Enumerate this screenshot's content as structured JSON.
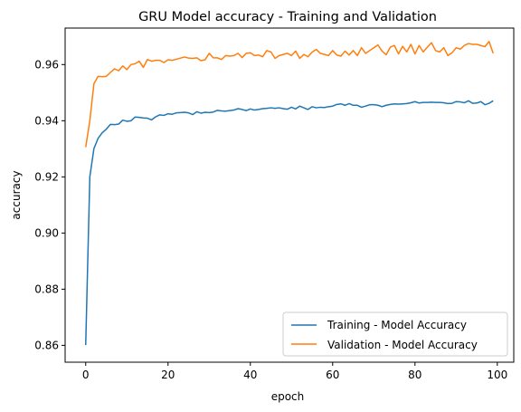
{
  "chart_data": {
    "type": "line",
    "title": "GRU Model accuracy - Training and Validation",
    "xlabel": "epoch",
    "ylabel": "accuracy",
    "xlim": [
      -5,
      104
    ],
    "ylim": [
      0.854,
      0.973
    ],
    "xticks": [
      0,
      20,
      40,
      60,
      80,
      100
    ],
    "yticks": [
      0.86,
      0.88,
      0.9,
      0.92,
      0.94,
      0.96
    ],
    "ytick_labels": [
      "0.86",
      "0.88",
      "0.90",
      "0.92",
      "0.94",
      "0.96"
    ],
    "grid": false,
    "legend_position": "lower-right",
    "series": [
      {
        "name": "Training - Model Accuracy",
        "color": "#1f77b4",
        "x": [
          0,
          1,
          2,
          3,
          4,
          5,
          6,
          7,
          8,
          9,
          10,
          11,
          12,
          13,
          14,
          15,
          16,
          17,
          18,
          19,
          20,
          21,
          22,
          23,
          24,
          25,
          26,
          27,
          28,
          29,
          30,
          31,
          32,
          33,
          34,
          35,
          36,
          37,
          38,
          39,
          40,
          41,
          42,
          43,
          44,
          45,
          46,
          47,
          48,
          49,
          50,
          51,
          52,
          53,
          54,
          55,
          56,
          57,
          58,
          59,
          60,
          61,
          62,
          63,
          64,
          65,
          66,
          67,
          68,
          69,
          70,
          71,
          72,
          73,
          74,
          75,
          76,
          77,
          78,
          79,
          80,
          81,
          82,
          83,
          84,
          85,
          86,
          87,
          88,
          89,
          90,
          91,
          92,
          93,
          94,
          95,
          96,
          97,
          98,
          99
        ],
        "values": [
          0.8601,
          0.92,
          0.9301,
          0.9337,
          0.9357,
          0.937,
          0.9387,
          0.9386,
          0.9388,
          0.9402,
          0.9398,
          0.94,
          0.9413,
          0.9412,
          0.941,
          0.9409,
          0.9403,
          0.9414,
          0.9421,
          0.9419,
          0.9425,
          0.9423,
          0.9428,
          0.9429,
          0.943,
          0.9428,
          0.9422,
          0.9432,
          0.9427,
          0.943,
          0.9429,
          0.9431,
          0.9437,
          0.9435,
          0.9434,
          0.9436,
          0.9438,
          0.9443,
          0.944,
          0.9436,
          0.9442,
          0.9438,
          0.944,
          0.9443,
          0.9444,
          0.9446,
          0.9444,
          0.9446,
          0.9443,
          0.9441,
          0.9448,
          0.9442,
          0.9452,
          0.9446,
          0.944,
          0.945,
          0.9446,
          0.9448,
          0.9447,
          0.945,
          0.9452,
          0.9458,
          0.946,
          0.9455,
          0.9461,
          0.9455,
          0.9455,
          0.9448,
          0.9452,
          0.9457,
          0.9457,
          0.9455,
          0.945,
          0.9455,
          0.9458,
          0.946,
          0.9459,
          0.946,
          0.9461,
          0.9464,
          0.9468,
          0.9463,
          0.9465,
          0.9465,
          0.9466,
          0.9465,
          0.9465,
          0.9464,
          0.9461,
          0.9462,
          0.9468,
          0.9467,
          0.9464,
          0.9471,
          0.9462,
          0.9463,
          0.9468,
          0.9457,
          0.9462,
          0.9471
        ]
      },
      {
        "name": "Validation - Model Accuracy",
        "color": "#ff7f0e",
        "x": [
          0,
          1,
          2,
          3,
          4,
          5,
          6,
          7,
          8,
          9,
          10,
          11,
          12,
          13,
          14,
          15,
          16,
          17,
          18,
          19,
          20,
          21,
          22,
          23,
          24,
          25,
          26,
          27,
          28,
          29,
          30,
          31,
          32,
          33,
          34,
          35,
          36,
          37,
          38,
          39,
          40,
          41,
          42,
          43,
          44,
          45,
          46,
          47,
          48,
          49,
          50,
          51,
          52,
          53,
          54,
          55,
          56,
          57,
          58,
          59,
          60,
          61,
          62,
          63,
          64,
          65,
          66,
          67,
          68,
          69,
          70,
          71,
          72,
          73,
          74,
          75,
          76,
          77,
          78,
          79,
          80,
          81,
          82,
          83,
          84,
          85,
          86,
          87,
          88,
          89,
          90,
          91,
          92,
          93,
          94,
          95,
          96,
          97,
          98,
          99
        ],
        "values": [
          0.9306,
          0.94,
          0.9532,
          0.9558,
          0.9557,
          0.9558,
          0.9572,
          0.9585,
          0.9578,
          0.9595,
          0.9582,
          0.96,
          0.9603,
          0.9612,
          0.959,
          0.9618,
          0.9612,
          0.9615,
          0.9615,
          0.9607,
          0.9617,
          0.9615,
          0.9619,
          0.9623,
          0.9627,
          0.9623,
          0.9622,
          0.9624,
          0.9614,
          0.9617,
          0.964,
          0.9624,
          0.9624,
          0.9618,
          0.9632,
          0.963,
          0.9632,
          0.964,
          0.9625,
          0.964,
          0.9642,
          0.9632,
          0.9634,
          0.9628,
          0.965,
          0.9645,
          0.9622,
          0.9632,
          0.9636,
          0.964,
          0.9632,
          0.9648,
          0.9622,
          0.9636,
          0.9628,
          0.9644,
          0.9654,
          0.964,
          0.9636,
          0.9632,
          0.965,
          0.9634,
          0.963,
          0.9648,
          0.9634,
          0.965,
          0.9632,
          0.966,
          0.964,
          0.965,
          0.966,
          0.967,
          0.9648,
          0.9635,
          0.9662,
          0.9668,
          0.9638,
          0.9665,
          0.9645,
          0.9672,
          0.9638,
          0.9668,
          0.9645,
          0.9662,
          0.9678,
          0.965,
          0.9645,
          0.966,
          0.9632,
          0.9642,
          0.966,
          0.9655,
          0.9668,
          0.9675,
          0.9672,
          0.9672,
          0.9668,
          0.9664,
          0.9682,
          0.964
        ]
      }
    ]
  }
}
